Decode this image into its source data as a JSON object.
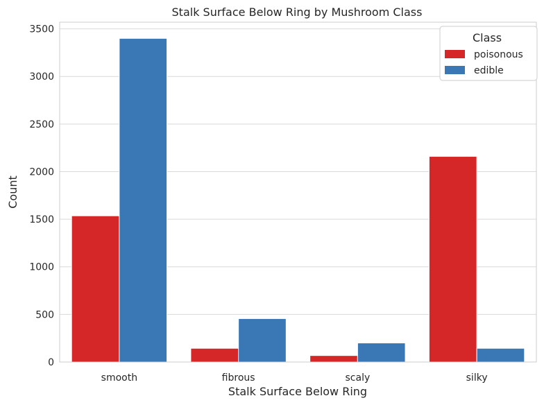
{
  "chart_data": {
    "type": "bar",
    "title": "Stalk Surface Below Ring by Mushroom Class",
    "xlabel": "Stalk Surface Below Ring",
    "ylabel": "Count",
    "categories": [
      "smooth",
      "fibrous",
      "scaly",
      "silky"
    ],
    "series": [
      {
        "name": "poisonous",
        "color": "#d62728",
        "values": [
          1536,
          144,
          68,
          2160
        ]
      },
      {
        "name": "edible",
        "color": "#3a78b5",
        "values": [
          3400,
          456,
          200,
          144
        ]
      }
    ],
    "ylim": [
      0,
      3570
    ],
    "yticks": [
      0,
      500,
      1000,
      1500,
      2000,
      2500,
      3000,
      3500
    ],
    "grid": "y",
    "legend": {
      "title": "Class",
      "placement": "top-right"
    }
  }
}
